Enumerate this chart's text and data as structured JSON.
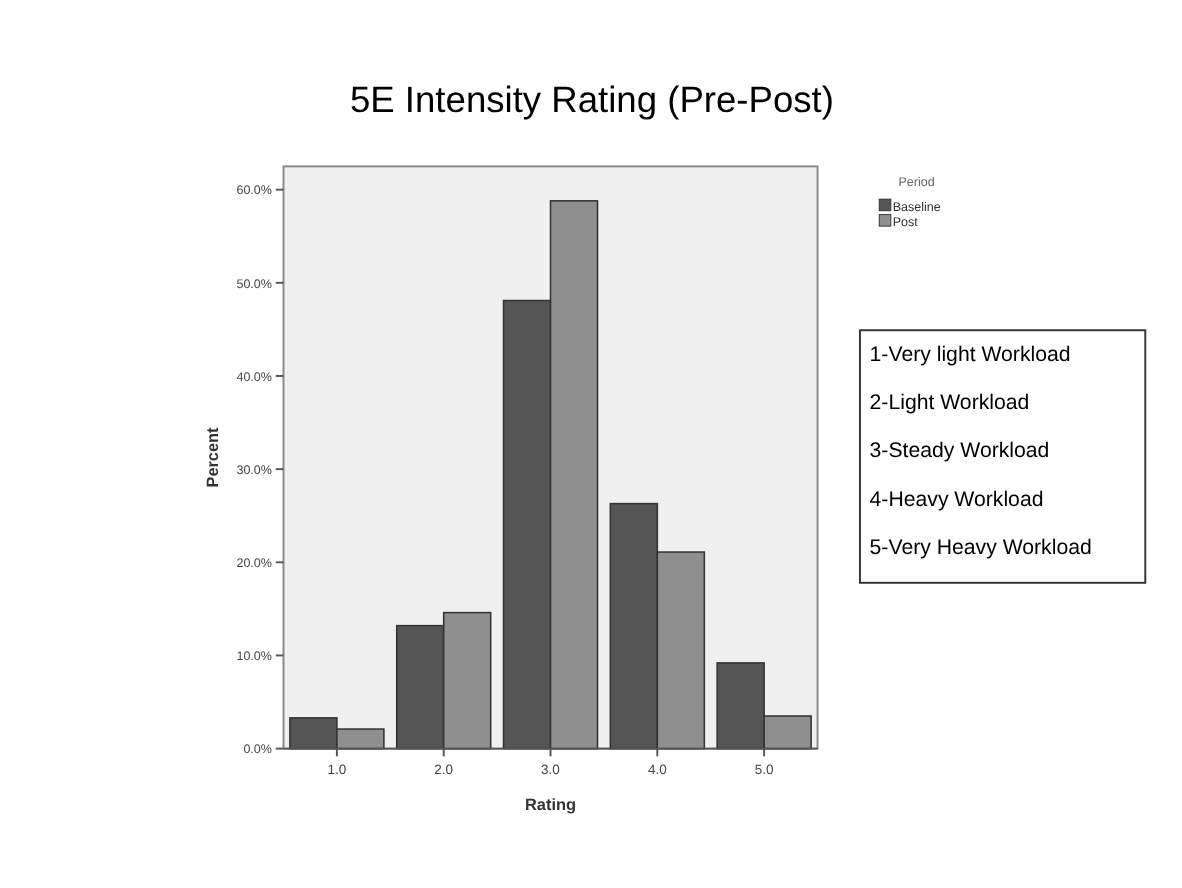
{
  "chart_data": {
    "type": "bar",
    "title": "5E Intensity Rating (Pre-Post)",
    "xlabel": "Rating",
    "ylabel": "Percent",
    "categories": [
      "1.0",
      "2.0",
      "3.0",
      "4.0",
      "5.0"
    ],
    "series": [
      {
        "name": "Baseline",
        "color": "#555555",
        "values": [
          3.3,
          13.2,
          48.1,
          26.3,
          9.2
        ]
      },
      {
        "name": "Post",
        "color": "#8f8f8f",
        "values": [
          2.1,
          14.6,
          58.8,
          21.1,
          3.5
        ]
      }
    ],
    "legend_title": "Period",
    "legend": "top right",
    "ylim": [
      0,
      62.5
    ],
    "yticks": [
      {
        "value": 0,
        "label": "0.0%"
      },
      {
        "value": 10,
        "label": "10.0%"
      },
      {
        "value": 20,
        "label": "20.0%"
      },
      {
        "value": 30,
        "label": "30.0%"
      },
      {
        "value": 40,
        "label": "40.0%"
      },
      {
        "value": 50,
        "label": "50.0%"
      },
      {
        "value": 60,
        "label": "60.0%"
      }
    ],
    "annotations": [
      "1-Very light Workload",
      "2-Light Workload",
      "3-Steady Workload",
      "4-Heavy Workload",
      "5-Very Heavy Workload"
    ]
  }
}
